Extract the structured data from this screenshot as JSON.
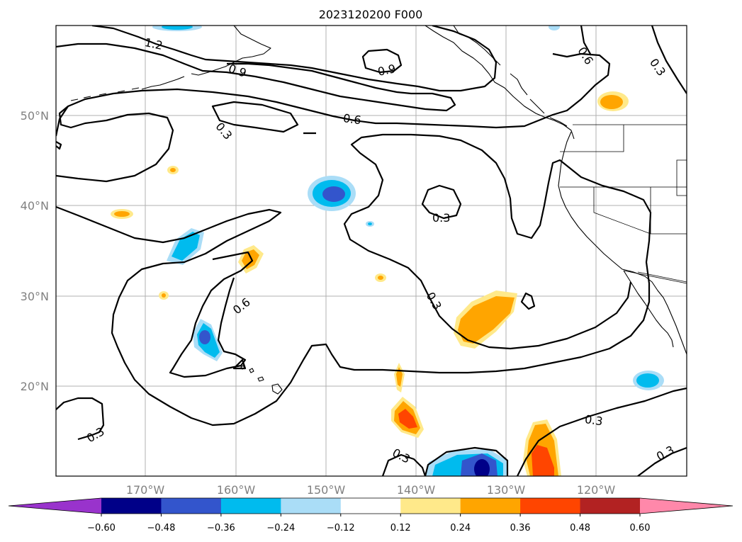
{
  "title": "2023120200 F000",
  "lat_labels": [
    "50°N",
    "40°N",
    "30°N",
    "20°N"
  ],
  "lon_labels": [
    "170°W",
    "160°W",
    "150°W",
    "140°W",
    "130°W",
    "120°W"
  ],
  "contour_labels": [
    "1.2",
    "0.9",
    "0.9",
    "0.6",
    "0.6",
    "0.3",
    "0.6",
    "0.3",
    "0.3",
    "0.3",
    "0.3",
    "0.3",
    "0.3"
  ],
  "colorbar": {
    "ticks": [
      "−0.60",
      "−0.48",
      "−0.36",
      "−0.24",
      "−0.12",
      "0.12",
      "0.24",
      "0.36",
      "0.48",
      "0.60"
    ],
    "colors": [
      "#9933cc",
      "#000088",
      "#3355cc",
      "#00bbee",
      "#aaddf7",
      "#ffffff",
      "#ffe98a",
      "#ffa500",
      "#ff4500",
      "#b22222",
      "#ff88aa"
    ]
  },
  "colors": {
    "pos_low": "#ffe98a",
    "pos_mid": "#ffa500",
    "pos_high": "#ff4500",
    "neg_low": "#aaddf7",
    "neg_mid": "#00bbee",
    "neg_high": "#3355cc",
    "neg_max": "#000088"
  }
}
